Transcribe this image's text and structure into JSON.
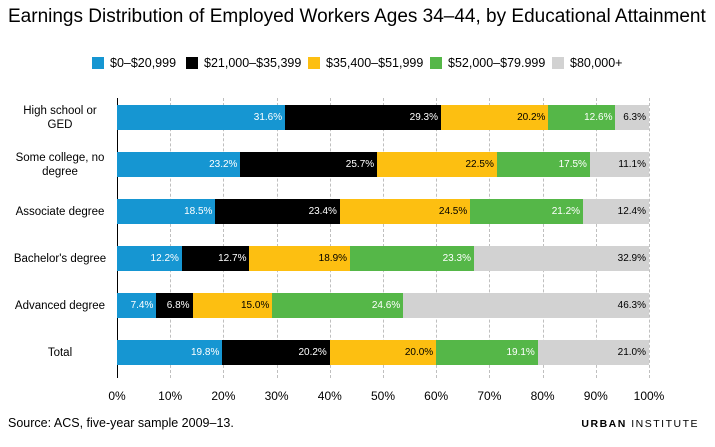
{
  "title": "Earnings Distribution of Employed Workers Ages 34–44, by Educational Attainment",
  "source": "Source: ACS, five-year sample 2009–13.",
  "brand": {
    "bold": "URBAN",
    "rest": " INSTITUTE"
  },
  "chart_data": {
    "type": "bar",
    "orientation": "horizontal",
    "stacked": true,
    "categories": [
      "High school or GED",
      "Some college, no degree",
      "Associate degree",
      "Bachelor's degree",
      "Advanced degree",
      "Total"
    ],
    "category_label_lines": [
      [
        "High school or",
        "GED"
      ],
      [
        "Some college, no",
        "degree"
      ],
      [
        "Associate degree"
      ],
      [
        "Bachelor's degree"
      ],
      [
        "Advanced degree"
      ],
      [
        "Total"
      ]
    ],
    "series": [
      {
        "name": "$0–$20,999",
        "color": "#1696d2",
        "label_color": "#ffffff",
        "values": [
          31.6,
          23.2,
          18.5,
          12.2,
          7.4,
          19.8
        ],
        "labels": [
          "31.6%",
          "23.2%",
          "18.5%",
          "12.2%",
          "7.4%",
          "19.8%"
        ]
      },
      {
        "name": "$21,000–$35,399",
        "color": "#000000",
        "label_color": "#ffffff",
        "values": [
          29.3,
          25.7,
          23.4,
          12.7,
          6.8,
          20.2
        ],
        "labels": [
          "29.3%",
          "25.7%",
          "23.4%",
          "12.7%",
          "6.8%",
          "20.2%"
        ]
      },
      {
        "name": "$35,400–$51,999",
        "color": "#fdbf11",
        "label_color": "#000000",
        "values": [
          20.2,
          22.5,
          24.5,
          18.9,
          15.0,
          20.0
        ],
        "labels": [
          "20.2%",
          "22.5%",
          "24.5%",
          "18.9%",
          "15.0%",
          "20.0%"
        ]
      },
      {
        "name": "$52,000–$79.999",
        "color": "#55b748",
        "label_color": "#ffffff",
        "values": [
          12.6,
          17.5,
          21.2,
          23.3,
          24.6,
          19.1
        ],
        "labels": [
          "12.6%",
          "17.5%",
          "21.2%",
          "23.3%",
          "24.6%",
          "19.1%"
        ]
      },
      {
        "name": "$80,000+",
        "color": "#d2d2d2",
        "label_color": "#000000",
        "values": [
          6.3,
          11.1,
          12.4,
          32.9,
          46.3,
          21.0
        ],
        "labels": [
          "6.3%",
          "11.1%",
          "12.4%",
          "32.9%",
          "46.3%",
          "21.0%"
        ]
      }
    ],
    "xlim": [
      0,
      100
    ],
    "xticks": [
      "0%",
      "10%",
      "20%",
      "30%",
      "40%",
      "50%",
      "60%",
      "70%",
      "80%",
      "90%",
      "100%"
    ],
    "legend_position": "top",
    "grid": "vertical dashed"
  }
}
